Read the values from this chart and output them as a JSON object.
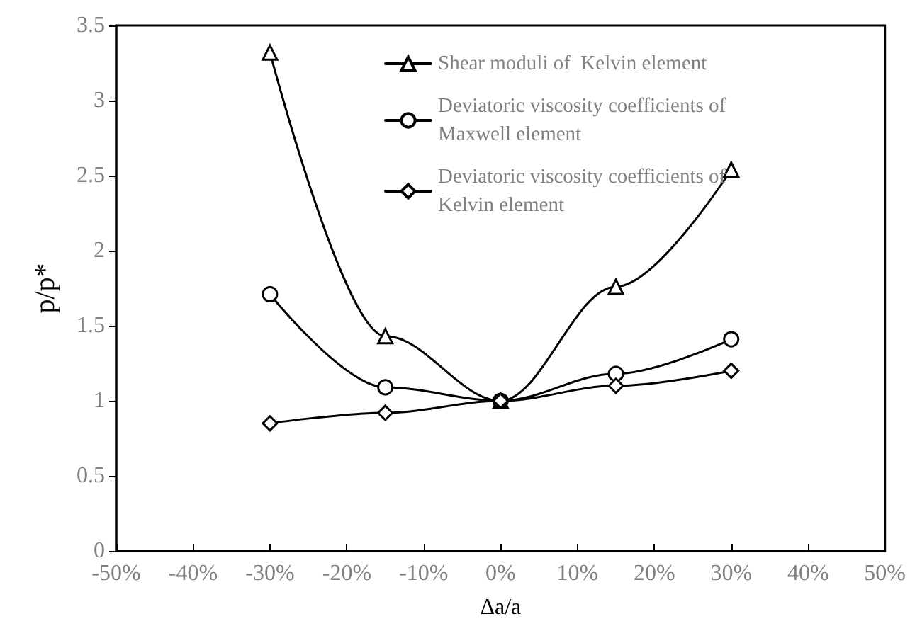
{
  "chart_data": {
    "type": "line",
    "xlabel": "Δa/a",
    "ylabel": "p/p*",
    "x": [
      -30,
      -15,
      0,
      15,
      30
    ],
    "series": [
      {
        "name": "Shear moduli of  Kelvin element",
        "color": "#000000",
        "marker": "triangle",
        "values": [
          3.32,
          1.43,
          1.0,
          1.76,
          2.54
        ]
      },
      {
        "name": "Deviatoric viscosity coefficients of Maxwell element",
        "color": "#000000",
        "marker": "circle",
        "values": [
          1.71,
          1.09,
          1.0,
          1.18,
          1.41
        ]
      },
      {
        "name": "Deviatoric viscosity coefficients of Kelvin element",
        "color": "#000000",
        "marker": "diamond",
        "values": [
          0.85,
          0.92,
          1.0,
          1.1,
          1.2
        ]
      }
    ],
    "xlim": [
      -50,
      50
    ],
    "xticks": [
      {
        "value": -50,
        "label": "-50%"
      },
      {
        "value": -40,
        "label": "-40%"
      },
      {
        "value": -30,
        "label": "-30%"
      },
      {
        "value": -20,
        "label": "-20%"
      },
      {
        "value": -10,
        "label": "-10%"
      },
      {
        "value": 0,
        "label": "0%"
      },
      {
        "value": 10,
        "label": "10%"
      },
      {
        "value": 20,
        "label": "20%"
      },
      {
        "value": 30,
        "label": "30%"
      },
      {
        "value": 40,
        "label": "40%"
      },
      {
        "value": 50,
        "label": "50%"
      }
    ],
    "ylim": [
      0,
      3.5
    ],
    "yticks": [
      0,
      0.5,
      1,
      1.5,
      2,
      2.5,
      3,
      3.5
    ],
    "grid": false,
    "legend": "top right",
    "line_style": "solid"
  }
}
